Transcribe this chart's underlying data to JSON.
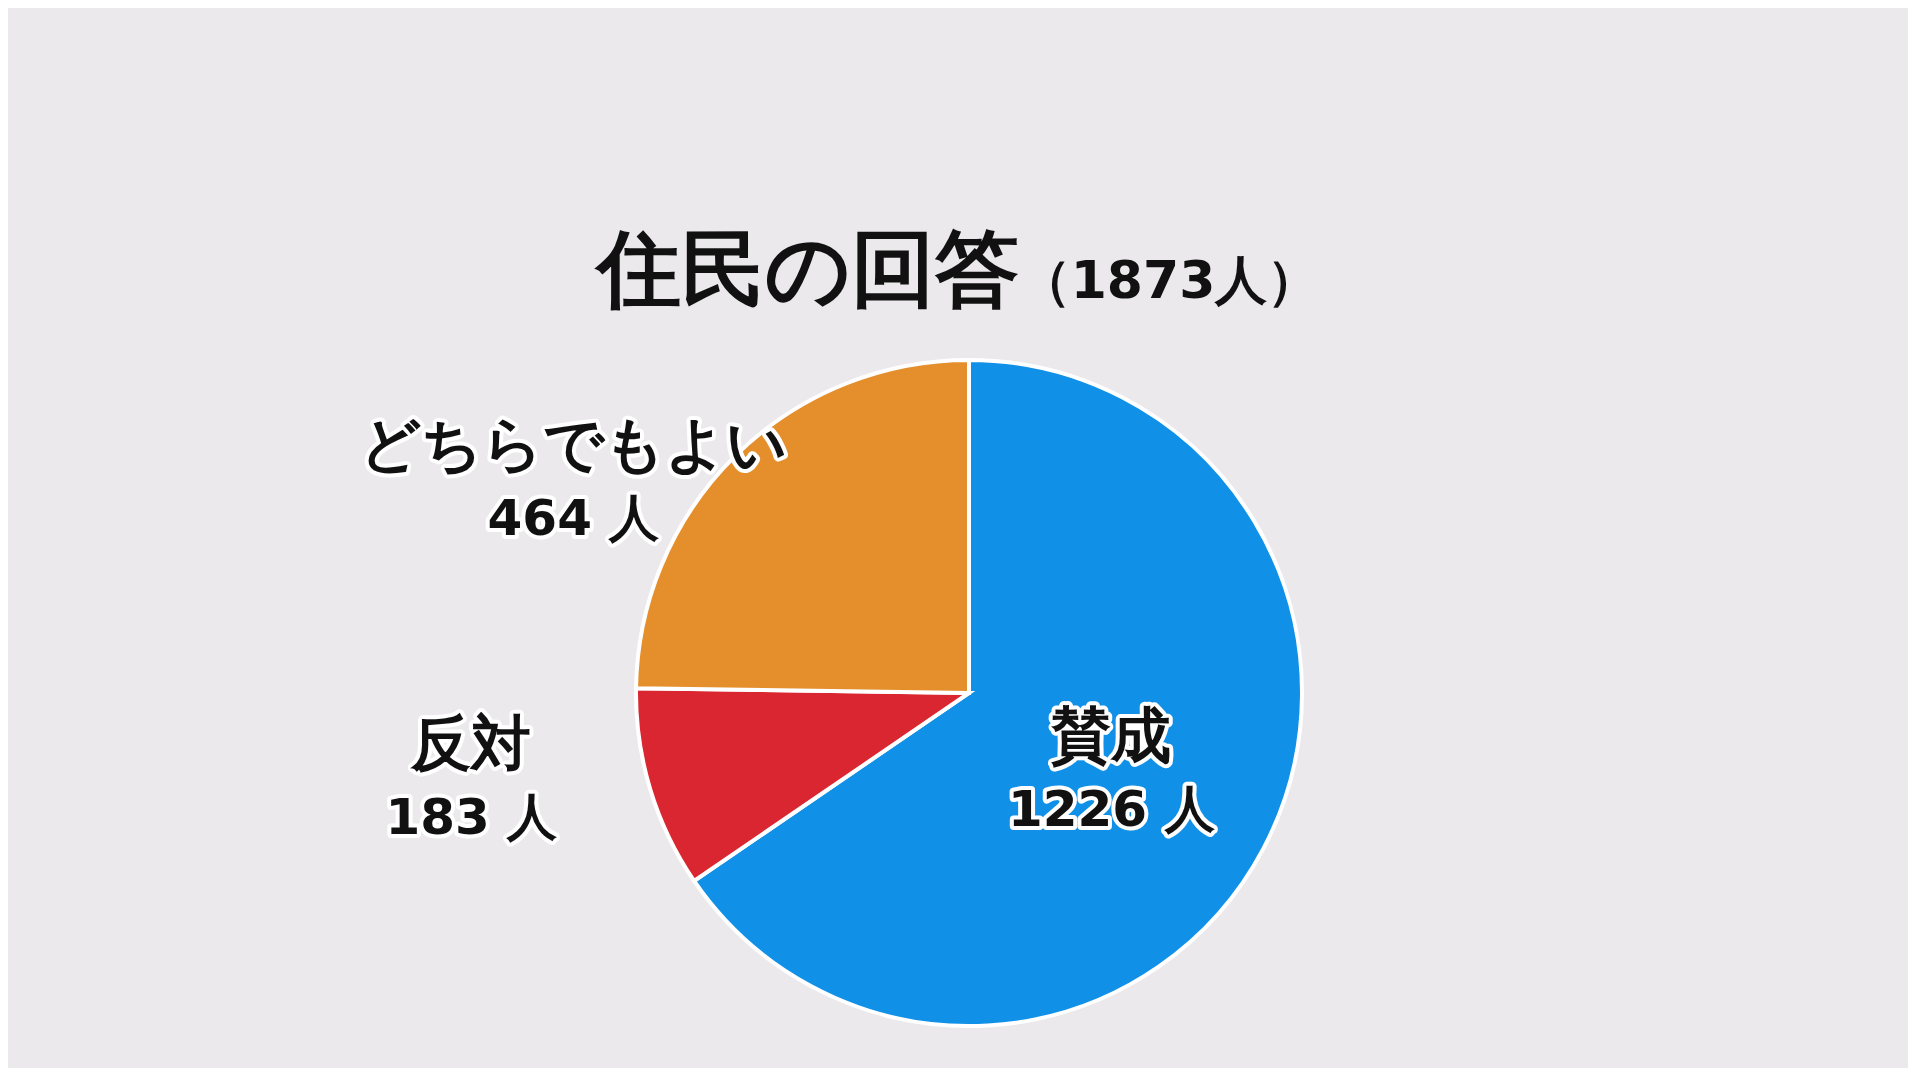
{
  "chart_data": {
    "type": "pie",
    "title": "住民の回答",
    "subtitle": "（1873人）",
    "categories": [
      "賛成",
      "反対",
      "どちらでもよい"
    ],
    "values": [
      1226,
      183,
      464
    ],
    "colors": [
      "#1190e8",
      "#da2630",
      "#e48f2c"
    ],
    "value_labels": [
      "1226 人",
      "183 人",
      "464 人"
    ]
  }
}
